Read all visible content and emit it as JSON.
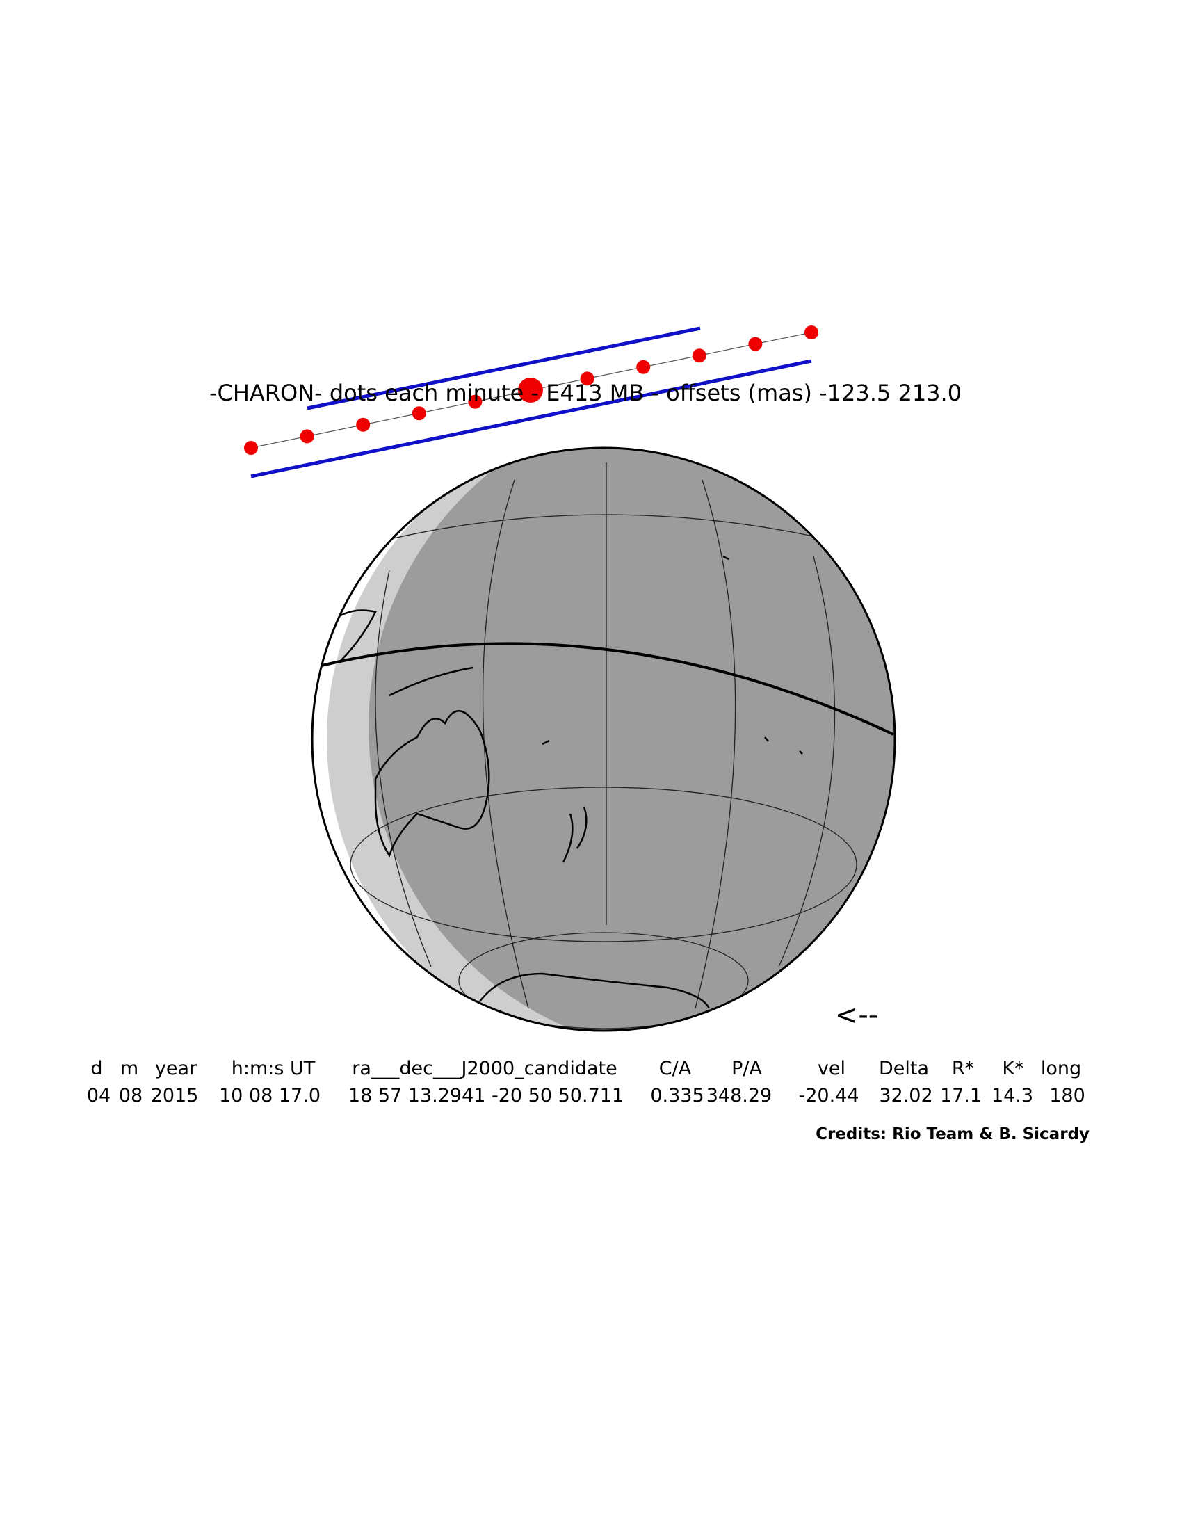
{
  "title": "-CHARON- dots each minute - E413 MB - offsets (mas) -123.5 213.0",
  "arrow": "<--",
  "table": {
    "header": [
      "d",
      "m",
      "year",
      "h:m:s UT",
      "ra___dec___J2000_candidate",
      "C/A",
      "P/A",
      "vel",
      "Delta",
      "R*",
      "K*",
      "long"
    ],
    "row": [
      "04",
      "08",
      "2015",
      "10 08 17.0",
      "18 57 13.2941 -20 50 50.711",
      "0.335",
      "348.29",
      "-20.44",
      "32.02",
      "17.1",
      "14.3",
      "180"
    ]
  },
  "credits": "Credits: Rio Team & B. Sicardy"
}
